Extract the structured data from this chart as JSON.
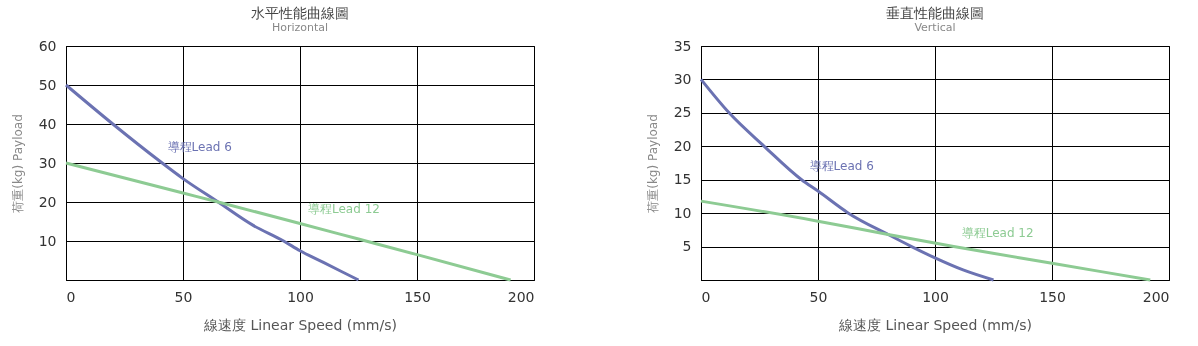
{
  "chart_data": [
    {
      "type": "line",
      "title": "水平性能曲線圖",
      "subtitle": "Horizontal",
      "xlabel": "線速度 Linear Speed (mm/s)",
      "ylabel": "荷重(kg) Payload",
      "xlim": [
        0,
        200
      ],
      "xticks": [
        0,
        50,
        100,
        150,
        200
      ],
      "ylim": [
        0,
        60
      ],
      "yticks": [
        10,
        20,
        30,
        40,
        50,
        60
      ],
      "grid": true,
      "line_style": "solid",
      "marker": "none",
      "series": [
        {
          "name": "導程Lead 6",
          "color": "#6b72b2",
          "x": [
            0,
            20,
            40,
            50,
            65,
            80,
            93,
            100,
            110,
            125
          ],
          "values": [
            50,
            40,
            30.5,
            26,
            20,
            14,
            10,
            7.5,
            4.5,
            0
          ]
        },
        {
          "name": "導程Lead 12",
          "color": "#8dcb93",
          "x": [
            0,
            50,
            65,
            100,
            125,
            150,
            190
          ],
          "values": [
            30,
            22.3,
            20,
            14.5,
            10.5,
            6.5,
            0
          ]
        }
      ]
    },
    {
      "type": "line",
      "title": "垂直性能曲線圖",
      "subtitle": "Vertical",
      "xlabel": "線速度 Linear Speed (mm/s)",
      "ylabel": "荷重(kg) Payload",
      "xlim": [
        0,
        200
      ],
      "xticks": [
        0,
        50,
        100,
        150,
        200
      ],
      "ylim": [
        0,
        35
      ],
      "yticks": [
        5,
        10,
        15,
        20,
        25,
        30,
        35
      ],
      "grid": true,
      "line_style": "solid",
      "marker": "none",
      "series": [
        {
          "name": "導程Lead 6",
          "color": "#6b72b2",
          "x": [
            0,
            12,
            27,
            43,
            50,
            63,
            80,
            90,
            100,
            112,
            125
          ],
          "values": [
            30,
            25,
            20,
            15,
            13.3,
            10,
            6.8,
            5,
            3.3,
            1.5,
            0
          ]
        },
        {
          "name": "導程Lead 12",
          "color": "#8dcb93",
          "x": [
            0,
            50,
            80,
            108,
            150,
            192
          ],
          "values": [
            11.8,
            8.8,
            6.8,
            5,
            2.5,
            0
          ]
        }
      ]
    }
  ]
}
